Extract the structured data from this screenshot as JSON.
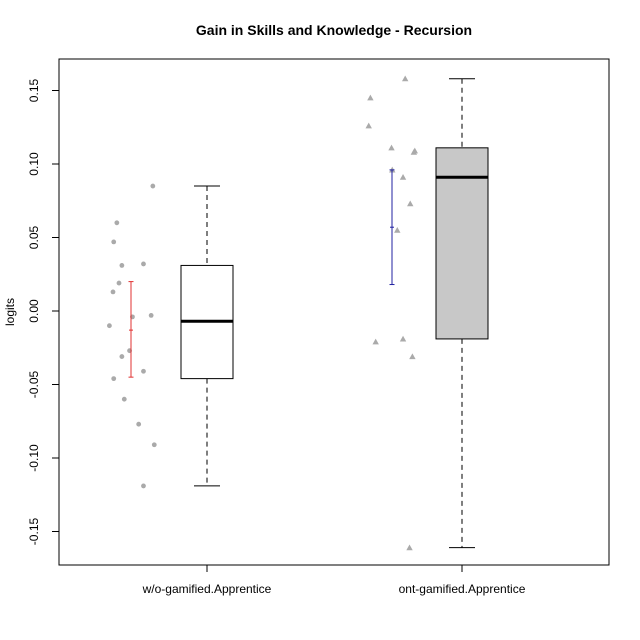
{
  "chart_data": {
    "type": "box",
    "title": "Gain in Skills and Knowledge - Recursion",
    "xlabel": "",
    "ylabel": "logits",
    "ylim": [
      -0.172,
      0.172
    ],
    "y_ticks": [
      -0.15,
      -0.1,
      -0.05,
      0.0,
      0.05,
      0.1,
      0.15
    ],
    "y_tick_labels": [
      "-0.15",
      "-0.10",
      "-0.05",
      "0.00",
      "0.05",
      "0.10",
      "0.15"
    ],
    "categories": [
      "w/o-gamified.Apprentice",
      "ont-gamified.Apprentice"
    ],
    "boxes": [
      {
        "name": "w/o-gamified.Apprentice",
        "whisker_low": -0.119,
        "q1": -0.046,
        "median": -0.007,
        "q3": 0.031,
        "whisker_high": 0.085,
        "fill": "#ffffff"
      },
      {
        "name": "ont-gamified.Apprentice",
        "whisker_low": -0.161,
        "q1": -0.019,
        "median": 0.091,
        "q3": 0.111,
        "whisker_high": 0.158,
        "fill": "#c8c8c8"
      }
    ],
    "error_bars": [
      {
        "name": "w/o-gamified.Apprentice",
        "mean": -0.013,
        "low": -0.045,
        "high": 0.02,
        "color": "#e03030"
      },
      {
        "name": "ont-gamified.Apprentice",
        "mean": 0.057,
        "low": 0.018,
        "high": 0.096,
        "color": "#2020a0"
      }
    ],
    "points": [
      {
        "name": "w/o-gamified.Apprentice",
        "shape": "circle",
        "color": "#aaaaaa",
        "values": [
          0.085,
          0.06,
          0.047,
          0.032,
          0.031,
          0.019,
          0.013,
          -0.003,
          -0.004,
          -0.01,
          -0.027,
          -0.031,
          -0.041,
          -0.046,
          -0.06,
          -0.077,
          -0.091,
          -0.119
        ],
        "x_offsets": [
          0.91,
          -0.59,
          -0.72,
          0.52,
          -0.38,
          -0.5,
          -0.75,
          0.84,
          0.06,
          -0.9,
          -0.06,
          -0.38,
          0.52,
          -0.72,
          -0.28,
          0.32,
          0.97,
          0.52
        ]
      },
      {
        "name": "ont-gamified.Apprentice",
        "shape": "triangle",
        "color": "#aaaaaa",
        "values": [
          0.158,
          0.145,
          0.126,
          0.111,
          0.109,
          0.108,
          0.096,
          0.091,
          0.073,
          0.055,
          -0.019,
          -0.021,
          -0.031,
          -0.161
        ],
        "x_offsets": [
          0.55,
          -0.9,
          -0.97,
          -0.02,
          0.95,
          0.91,
          0.01,
          0.46,
          0.76,
          0.22,
          0.46,
          -0.68,
          0.85,
          0.73
        ]
      }
    ]
  }
}
